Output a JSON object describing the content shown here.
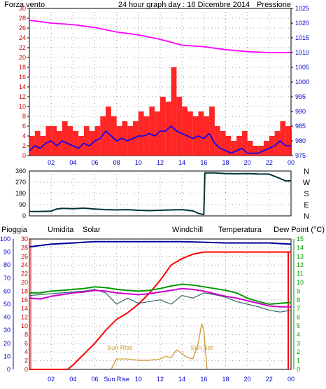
{
  "header": {
    "left_label": "Forza vento",
    "title": "24 hour graph day : 16 Dicembre 2014",
    "right_label": "Pressione"
  },
  "colors": {
    "wind_gust": "#ff0000",
    "wind_avg": "#0000ff",
    "pressure": "#ff00ff",
    "direction": "#003333",
    "rain": "#ff0000",
    "humidity": "#000099",
    "solar": "#cc9933",
    "windchill": "#336666",
    "temperature": "#009900",
    "dewpoint": "#cc00cc",
    "left_axis_red": "#cc0000",
    "right_axis_blue": "#0000cc",
    "grid": "#999999"
  },
  "x_ticks": [
    "02",
    "04",
    "06",
    "08",
    "10",
    "12",
    "14",
    "16",
    "18",
    "20",
    "22",
    "00"
  ],
  "panel2": {
    "y_ticks": [
      "360",
      "270",
      "180",
      "90",
      "0"
    ],
    "compass": [
      "N",
      "W",
      "S",
      "E",
      "N"
    ]
  },
  "panel3": {
    "legend": {
      "rain": "Pioggia",
      "humidity": "Umidita",
      "solar": "Solar",
      "windchill": "Windchill",
      "temperature": "Temperatura",
      "dewpoint": "Dew Point (°C)"
    },
    "annotations": {
      "sunrise": "Sun Rise",
      "sunset": "Sun Set"
    },
    "x_ticks": [
      "02",
      "04",
      "06",
      "Sun Rise",
      "10",
      "12",
      "14",
      "16",
      "18",
      "20",
      "22",
      "00"
    ]
  },
  "chart_data": [
    {
      "type": "line",
      "title": "24 hour graph day : 16 Dicembre 2014",
      "x_unit": "hour",
      "xlim": [
        0,
        24
      ],
      "left_axis": {
        "label": "Forza vento",
        "ylim": [
          0,
          30
        ],
        "ticks": [
          0,
          2,
          4,
          6,
          8,
          10,
          12,
          14,
          16,
          18,
          20,
          22,
          24,
          26,
          28,
          30
        ]
      },
      "right_axis": {
        "label": "Pressione",
        "ylim": [
          975,
          1025
        ],
        "ticks": [
          975,
          980,
          985,
          990,
          995,
          1000,
          1005,
          1010,
          1015,
          1020,
          1025
        ]
      },
      "grid": true,
      "series": [
        {
          "axis": "left",
          "style": "bars",
          "x": [
            0,
            0.5,
            1,
            1.5,
            2,
            2.5,
            3,
            3.5,
            4,
            4.5,
            5,
            5.5,
            6,
            6.5,
            7,
            7.5,
            8,
            8.5,
            9,
            9.5,
            10,
            10.5,
            11,
            11.5,
            12,
            12.5,
            13,
            13.5,
            14,
            14.5,
            15,
            15.5,
            16,
            16.5,
            17,
            17.5,
            18,
            18.5,
            19,
            19.5,
            20,
            20.5,
            21,
            21.5,
            22,
            22.5,
            23,
            23.5,
            24
          ],
          "values": [
            4,
            5,
            4,
            6,
            6,
            5,
            7,
            6,
            5,
            4,
            6,
            5,
            6,
            8,
            10,
            8,
            6,
            7,
            6,
            7,
            9,
            8,
            10,
            9,
            12,
            11,
            18,
            12,
            10,
            9,
            8,
            9,
            8,
            10,
            6,
            5,
            4,
            3,
            4,
            5,
            3,
            2,
            2,
            3,
            4,
            5,
            7,
            6,
            5
          ]
        },
        {
          "axis": "left",
          "x": [
            0,
            0.5,
            1,
            1.5,
            2,
            2.5,
            3,
            3.5,
            4,
            4.5,
            5,
            5.5,
            6,
            6.5,
            7,
            7.5,
            8,
            8.5,
            9,
            9.5,
            10,
            10.5,
            11,
            11.5,
            12,
            12.5,
            13,
            13.5,
            14,
            14.5,
            15,
            15.5,
            16,
            16.5,
            17,
            17.5,
            18,
            18.5,
            19,
            19.5,
            20,
            20.5,
            21,
            21.5,
            22,
            22.5,
            23,
            23.5,
            24
          ],
          "values": [
            1,
            2,
            1.5,
            2.5,
            3,
            2,
            3,
            2.5,
            2,
            1.5,
            2.5,
            2,
            3,
            3.5,
            5,
            4,
            3,
            3.5,
            3,
            3.5,
            4,
            4,
            4.5,
            4,
            5,
            5,
            6,
            5,
            4.5,
            4,
            3.5,
            4,
            3.5,
            4.5,
            2.5,
            1.5,
            1,
            0.5,
            1,
            1.5,
            0.5,
            0.5,
            0.5,
            1,
            1.5,
            2,
            3,
            2,
            2
          ]
        },
        {
          "axis": "right",
          "x": [
            0,
            2,
            4,
            6,
            8,
            10,
            12,
            14,
            16,
            18,
            20,
            22,
            24
          ],
          "values": [
            1021,
            1020,
            1019.5,
            1018.5,
            1017,
            1016,
            1014.5,
            1012.5,
            1012,
            1011,
            1010.3,
            1010,
            1010
          ]
        }
      ]
    },
    {
      "type": "line",
      "x_unit": "hour",
      "xlim": [
        0,
        24
      ],
      "ylim": [
        0,
        360
      ],
      "y_ticks": [
        0,
        90,
        180,
        270,
        360
      ],
      "grid": true,
      "series": [
        {
          "x": [
            0,
            1,
            2,
            2.5,
            3,
            4,
            5,
            6,
            7,
            8,
            9,
            10,
            11,
            12,
            13,
            14,
            15,
            15.5,
            16,
            16.1,
            17,
            18,
            19,
            20,
            21,
            22,
            23,
            23.5,
            24
          ],
          "values": [
            35,
            35,
            38,
            55,
            60,
            58,
            62,
            55,
            50,
            48,
            50,
            45,
            42,
            45,
            48,
            50,
            40,
            20,
            10,
            345,
            345,
            340,
            338,
            340,
            336,
            335,
            300,
            280,
            282
          ]
        }
      ]
    },
    {
      "type": "line",
      "x_unit": "hour",
      "xlim": [
        0,
        24
      ],
      "left_axis": {
        "ylim": [
          0,
          100
        ],
        "ticks": [
          0,
          10,
          20,
          30,
          40,
          50,
          60,
          70,
          80,
          90,
          100
        ]
      },
      "left_axis_inner": {
        "label": "Pioggia",
        "ylim": [
          0,
          30
        ],
        "ticks": [
          0,
          2,
          4,
          6,
          8,
          10,
          12,
          14,
          16,
          18,
          20,
          22,
          24,
          26,
          28,
          30
        ]
      },
      "right_axis": {
        "label": "Dew Point (°C)",
        "ylim": [
          0,
          15
        ],
        "ticks": [
          0,
          1,
          2,
          3,
          4,
          5,
          6,
          7,
          8,
          9,
          10,
          11,
          12,
          13,
          14,
          15
        ]
      },
      "grid": true,
      "series": [
        {
          "name": "Pioggia",
          "axis": "left_inner",
          "x": [
            0,
            3.5,
            4,
            5,
            6,
            7,
            8,
            9,
            10,
            11,
            12,
            13,
            14,
            15,
            16,
            17,
            18,
            19,
            20,
            21,
            22,
            23,
            24
          ],
          "values": [
            0,
            0,
            1,
            3.5,
            6,
            9,
            11.5,
            13,
            15,
            17.5,
            20.5,
            24,
            25.5,
            26.5,
            27,
            27,
            27,
            27,
            27,
            27,
            27,
            27,
            27
          ]
        },
        {
          "name": "Umidita",
          "axis": "left",
          "x": [
            0,
            1,
            2,
            3,
            4,
            5,
            6,
            8,
            10,
            12,
            14,
            16,
            18,
            20,
            22,
            23,
            24
          ],
          "values": [
            94,
            95,
            96,
            96.5,
            97,
            97.5,
            98,
            98,
            98,
            98,
            98,
            97.5,
            97,
            97,
            97,
            96.5,
            96
          ]
        },
        {
          "name": "Solar",
          "axis": "left",
          "x": [
            7.5,
            7.8,
            8,
            9,
            10,
            11,
            12,
            12.5,
            13,
            13.5,
            14,
            14.5,
            15,
            15.5,
            15.8,
            16,
            16.3
          ],
          "values": [
            0,
            5,
            8,
            8,
            7,
            7,
            8,
            10,
            9,
            15,
            12,
            9,
            8,
            20,
            35,
            30,
            0
          ]
        },
        {
          "name": "Windchill",
          "axis": "right",
          "x": [
            0,
            1,
            2,
            3,
            4,
            5,
            6,
            7,
            8,
            9,
            10,
            11,
            12,
            13,
            14,
            15,
            16,
            17,
            18,
            19,
            20,
            21,
            22,
            23,
            24
          ],
          "values": [
            8.5,
            8.6,
            8.7,
            8.8,
            8.9,
            9,
            9.2,
            8.8,
            7.5,
            8.2,
            7.6,
            7.8,
            8,
            7.5,
            8.5,
            8.2,
            8.8,
            8.6,
            8.3,
            7.8,
            7.5,
            7.2,
            6.8,
            6.6,
            6.8
          ]
        },
        {
          "name": "Temperatura",
          "axis": "right",
          "x": [
            0,
            1,
            2,
            3,
            4,
            5,
            6,
            7,
            8,
            9,
            10,
            11,
            12,
            13,
            14,
            15,
            16,
            17,
            18,
            19,
            20,
            21,
            22,
            23,
            24
          ],
          "values": [
            8.8,
            8.8,
            9,
            9.1,
            9.2,
            9.3,
            9.5,
            9.4,
            9.2,
            9.1,
            9,
            9.1,
            9.3,
            9.6,
            9.8,
            9.7,
            9.5,
            9.3,
            9.1,
            8.8,
            8.2,
            7.8,
            7.5,
            7.6,
            7.7
          ]
        },
        {
          "name": "Dew Point (°C)",
          "axis": "right",
          "x": [
            0,
            1,
            2,
            3,
            4,
            5,
            6,
            7,
            8,
            9,
            10,
            11,
            12,
            13,
            14,
            15,
            16,
            17,
            18,
            19,
            20,
            21,
            22,
            23,
            24
          ],
          "values": [
            8.2,
            8.1,
            8.4,
            8.6,
            8.8,
            8.9,
            9.1,
            9.0,
            8.8,
            8.7,
            8.6,
            8.7,
            8.9,
            9.1,
            9.3,
            9.2,
            9.0,
            8.7,
            8.4,
            8.2,
            7.9,
            7.6,
            7.3,
            7.2,
            7.2
          ]
        }
      ]
    }
  ]
}
